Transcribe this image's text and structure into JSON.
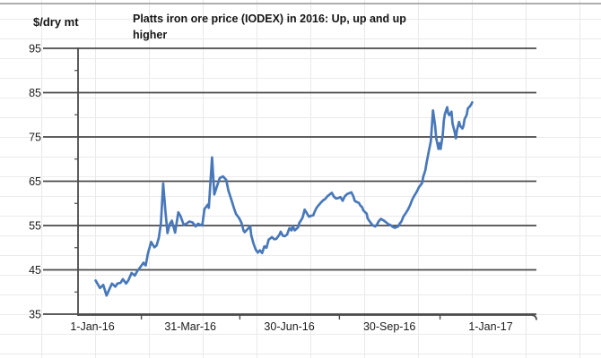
{
  "header": {
    "y_axis_unit": "$/dry mt"
  },
  "chart_data": {
    "type": "line",
    "title": "Platts iron ore price (IODEX) in 2016: Up, up and up higher",
    "title_lines": [
      "Platts iron ore price (IODEX) in 2016: Up, up and up",
      "higher"
    ],
    "ylabel": "$/dry mt",
    "xlabel": "",
    "ylim": [
      35,
      95
    ],
    "y_ticks": [
      95,
      85,
      75,
      65,
      55,
      45,
      35
    ],
    "y_minor_tick_step": 5,
    "x_tick_labels": [
      "1-Jan-16",
      "31-Mar-16",
      "30-Jun-16",
      "30-Sep-16",
      "1-Jan-17"
    ],
    "x_tick_days": [
      0,
      90,
      181,
      273,
      366
    ],
    "x_encoding": "days since 1-Jan-16",
    "grid": "major horizontal gridlines on, dark gray; faint spreadsheet grid behind",
    "legend": "none",
    "line_color": "#4878ba",
    "gridline_color": "#4a4a4a",
    "series": [
      {
        "name": "Platts iron ore price (IODEX)",
        "points": [
          [
            3,
            42.6
          ],
          [
            7,
            40.9
          ],
          [
            10,
            41.6
          ],
          [
            13,
            39.2
          ],
          [
            15,
            40.3
          ],
          [
            18,
            41.9
          ],
          [
            21,
            41.2
          ],
          [
            23,
            41.9
          ],
          [
            26,
            42.1
          ],
          [
            28,
            42.9
          ],
          [
            31,
            41.9
          ],
          [
            33,
            42.6
          ],
          [
            36,
            44.3
          ],
          [
            39,
            43.7
          ],
          [
            41,
            44.6
          ],
          [
            44,
            45.6
          ],
          [
            47,
            46.6
          ],
          [
            49,
            46.0
          ],
          [
            51,
            48.7
          ],
          [
            54,
            51.3
          ],
          [
            57,
            50.1
          ],
          [
            59,
            50.5
          ],
          [
            61,
            52.2
          ],
          [
            63,
            55.5
          ],
          [
            65,
            64.5
          ],
          [
            67,
            58.5
          ],
          [
            69,
            53.3
          ],
          [
            71,
            55.3
          ],
          [
            73,
            56.1
          ],
          [
            76,
            53.4
          ],
          [
            79,
            58.0
          ],
          [
            81,
            57.1
          ],
          [
            84,
            55.1
          ],
          [
            87,
            55.5
          ],
          [
            89,
            55.9
          ],
          [
            92,
            55.7
          ],
          [
            95,
            54.8
          ],
          [
            97,
            55.4
          ],
          [
            101,
            55.0
          ],
          [
            103,
            58.7
          ],
          [
            106,
            59.7
          ],
          [
            107,
            59.0
          ],
          [
            110,
            70.4
          ],
          [
            112,
            62.0
          ],
          [
            114,
            63.5
          ],
          [
            117,
            65.7
          ],
          [
            120,
            66.1
          ],
          [
            123,
            65.3
          ],
          [
            125,
            62.9
          ],
          [
            128,
            60.6
          ],
          [
            130,
            59.0
          ],
          [
            132,
            57.6
          ],
          [
            135,
            56.6
          ],
          [
            137,
            55.6
          ],
          [
            139,
            53.8
          ],
          [
            140,
            53.5
          ],
          [
            143,
            54.3
          ],
          [
            145,
            54.9
          ],
          [
            146,
            52.8
          ],
          [
            148,
            51.0
          ],
          [
            150,
            49.6
          ],
          [
            152,
            48.9
          ],
          [
            154,
            49.4
          ],
          [
            156,
            48.8
          ],
          [
            158,
            50.3
          ],
          [
            160,
            50.0
          ],
          [
            162,
            51.8
          ],
          [
            165,
            52.4
          ],
          [
            167,
            51.9
          ],
          [
            169,
            52.0
          ],
          [
            172,
            53.0
          ],
          [
            173,
            53.6
          ],
          [
            175,
            52.7
          ],
          [
            177,
            52.6
          ],
          [
            179,
            53.0
          ],
          [
            181,
            54.4
          ],
          [
            183,
            53.9
          ],
          [
            184,
            54.9
          ],
          [
            186,
            53.9
          ],
          [
            189,
            54.6
          ],
          [
            190,
            55.5
          ],
          [
            193,
            56.7
          ],
          [
            194,
            57.5
          ],
          [
            195,
            58.6
          ],
          [
            197,
            57.8
          ],
          [
            199,
            57.0
          ],
          [
            201,
            57.2
          ],
          [
            203,
            57.3
          ],
          [
            204,
            58.0
          ],
          [
            206,
            59.0
          ],
          [
            208,
            59.6
          ],
          [
            210,
            60.2
          ],
          [
            212,
            60.7
          ],
          [
            214,
            61.0
          ],
          [
            216,
            61.6
          ],
          [
            218,
            62.0
          ],
          [
            220,
            62.4
          ],
          [
            222,
            61.5
          ],
          [
            224,
            61.1
          ],
          [
            226,
            61.2
          ],
          [
            228,
            61.4
          ],
          [
            230,
            60.6
          ],
          [
            232,
            61.6
          ],
          [
            234,
            62.1
          ],
          [
            236,
            62.3
          ],
          [
            238,
            62.5
          ],
          [
            240,
            61.5
          ],
          [
            241,
            60.6
          ],
          [
            243,
            60.3
          ],
          [
            245,
            60.1
          ],
          [
            246,
            59.6
          ],
          [
            248,
            59.1
          ],
          [
            249,
            58.4
          ],
          [
            252,
            57.7
          ],
          [
            253,
            56.6
          ],
          [
            256,
            55.5
          ],
          [
            258,
            55.0
          ],
          [
            260,
            54.8
          ],
          [
            262,
            55.4
          ],
          [
            263,
            55.9
          ],
          [
            265,
            56.5
          ],
          [
            268,
            56.1
          ],
          [
            270,
            55.7
          ],
          [
            272,
            55.3
          ],
          [
            274,
            55.1
          ],
          [
            276,
            54.7
          ],
          [
            278,
            54.5
          ],
          [
            281,
            54.8
          ],
          [
            282,
            55.3
          ],
          [
            284,
            55.9
          ],
          [
            286,
            57.1
          ],
          [
            288,
            57.8
          ],
          [
            290,
            58.6
          ],
          [
            292,
            59.6
          ],
          [
            294,
            60.9
          ],
          [
            296,
            61.8
          ],
          [
            298,
            62.6
          ],
          [
            300,
            63.6
          ],
          [
            303,
            64.6
          ],
          [
            304,
            66.0
          ],
          [
            306,
            67.5
          ],
          [
            307,
            69.0
          ],
          [
            309,
            71.5
          ],
          [
            311,
            74.0
          ],
          [
            312,
            77.5
          ],
          [
            313,
            81.0
          ],
          [
            315,
            77.5
          ],
          [
            316,
            74.7
          ],
          [
            318,
            72.3
          ],
          [
            319,
            73.6
          ],
          [
            320,
            72.3
          ],
          [
            322,
            75.5
          ],
          [
            323,
            78.7
          ],
          [
            324,
            80.2
          ],
          [
            326,
            81.7
          ],
          [
            327,
            80.3
          ],
          [
            328,
            79.9
          ],
          [
            330,
            80.7
          ],
          [
            331,
            78.0
          ],
          [
            333,
            76.0
          ],
          [
            334,
            74.7
          ],
          [
            335,
            76.5
          ],
          [
            337,
            78.4
          ],
          [
            338,
            77.5
          ],
          [
            340,
            76.9
          ],
          [
            341,
            77.5
          ],
          [
            342,
            79.0
          ],
          [
            344,
            80.0
          ],
          [
            345,
            81.4
          ],
          [
            347,
            81.9
          ],
          [
            348,
            82.3
          ],
          [
            349,
            82.8
          ]
        ]
      }
    ]
  }
}
